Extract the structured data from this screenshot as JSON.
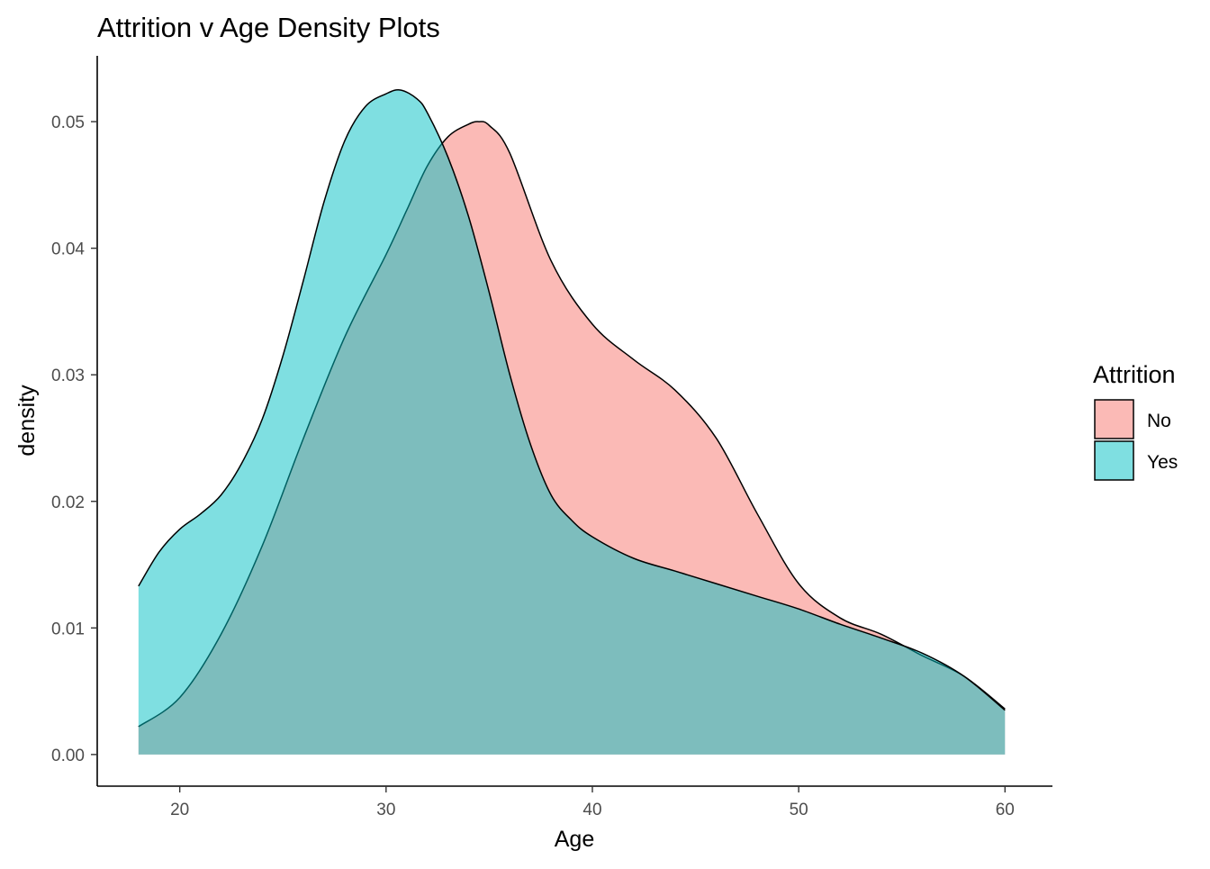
{
  "chart_data": {
    "type": "area",
    "title": "Attrition v Age Density Plots",
    "xlabel": "Age",
    "ylabel": "density",
    "xlim": [
      16,
      62.3
    ],
    "ylim": [
      -0.0025,
      0.0552
    ],
    "x_ticks": [
      20,
      30,
      40,
      50,
      60
    ],
    "x_tick_labels": [
      "20",
      "30",
      "40",
      "50",
      "60"
    ],
    "y_ticks": [
      0.0,
      0.01,
      0.02,
      0.03,
      0.04,
      0.05
    ],
    "y_tick_labels": [
      "0.00",
      "0.01",
      "0.02",
      "0.03",
      "0.04",
      "0.05"
    ],
    "grid": false,
    "legend": {
      "title": "Attrition",
      "position": "right"
    },
    "series": [
      {
        "name": "No",
        "color": "#F8766D",
        "x": [
          18,
          20,
          22,
          24,
          26,
          28,
          30,
          31,
          32,
          33,
          34,
          34.5,
          35,
          36,
          38,
          40,
          42,
          44,
          46,
          48,
          50,
          52,
          54,
          56,
          58,
          60
        ],
        "y": [
          0.0022,
          0.0045,
          0.0095,
          0.0165,
          0.025,
          0.033,
          0.0395,
          0.043,
          0.0465,
          0.0488,
          0.0498,
          0.05,
          0.0497,
          0.0475,
          0.039,
          0.034,
          0.0312,
          0.0288,
          0.025,
          0.019,
          0.0135,
          0.0108,
          0.0095,
          0.0078,
          0.0062,
          0.0036
        ]
      },
      {
        "name": "Yes",
        "color": "#00BFC4",
        "x": [
          18,
          19,
          20,
          21,
          22,
          23,
          24,
          25,
          26,
          27,
          28,
          29,
          30,
          30.7,
          31.5,
          32,
          33,
          34,
          35,
          36,
          37,
          38,
          39,
          40,
          42,
          44,
          46,
          48,
          50,
          52,
          54,
          56,
          58,
          60
        ],
        "y": [
          0.0133,
          0.016,
          0.0178,
          0.019,
          0.0205,
          0.023,
          0.0265,
          0.0315,
          0.0375,
          0.0437,
          0.0485,
          0.0512,
          0.0522,
          0.0525,
          0.0518,
          0.0507,
          0.0472,
          0.0425,
          0.0365,
          0.03,
          0.0245,
          0.0205,
          0.0185,
          0.0172,
          0.0155,
          0.0145,
          0.0135,
          0.0125,
          0.0115,
          0.0103,
          0.0092,
          0.008,
          0.0062,
          0.0035
        ]
      }
    ]
  }
}
